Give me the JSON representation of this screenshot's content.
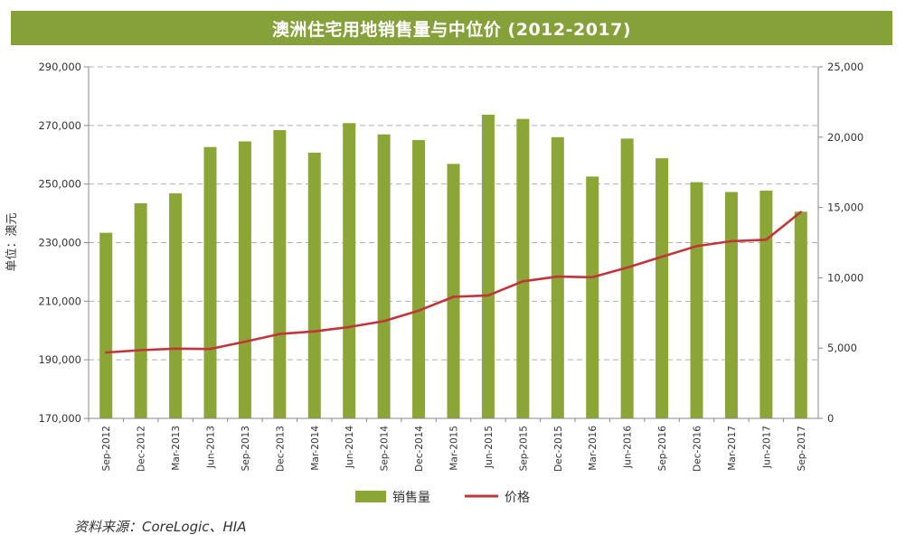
{
  "colors": {
    "bar": "#8ba536",
    "line": "#c0363a",
    "title_bg": "#86a03a",
    "grid": "#b0b0b0"
  },
  "source": "资料来源：CoreLogic、HIA",
  "chart_data": {
    "type": "bar",
    "title": "澳洲住宅用地销售量与中位价 (2012-2017)",
    "ylabel": "单位：澳元",
    "categories": [
      "Sep-2012",
      "Dec-2012",
      "Mar-2013",
      "Jun-2013",
      "Sep-2013",
      "Dec-2013",
      "Mar-2014",
      "Jun-2014",
      "Sep-2014",
      "Dec-2014",
      "Mar-2015",
      "Jun-2015",
      "Sep-2015",
      "Dec-2015",
      "Mar-2016",
      "Jun-2016",
      "Sep-2016",
      "Dec-2016",
      "Mar-2017",
      "Jun-2017",
      "Sep-2017"
    ],
    "series": [
      {
        "name": "销售量",
        "kind": "bar",
        "axis": "right",
        "values": [
          13200,
          15300,
          16000,
          19300,
          19700,
          20500,
          18900,
          21000,
          20200,
          19800,
          18100,
          21600,
          21300,
          20000,
          17200,
          19900,
          18500,
          16800,
          16100,
          16200,
          14700
        ]
      },
      {
        "name": "价格",
        "kind": "line",
        "axis": "left",
        "values": [
          192500,
          193300,
          193800,
          193700,
          196200,
          198800,
          199700,
          201200,
          203200,
          206800,
          211500,
          212000,
          216800,
          218400,
          218200,
          221500,
          225200,
          228800,
          230500,
          231000,
          240500
        ]
      }
    ],
    "y_left": {
      "min": 170000,
      "max": 290000,
      "ticks": [
        "170,000",
        "190,000",
        "210,000",
        "230,000",
        "250,000",
        "270,000",
        "290,000"
      ],
      "tick_values": [
        170000,
        190000,
        210000,
        230000,
        250000,
        270000,
        290000
      ]
    },
    "y_right": {
      "min": 0,
      "max": 25000,
      "ticks": [
        "0",
        "5,000",
        "10,000",
        "15,000",
        "20,000",
        "25,000"
      ],
      "tick_values": [
        0,
        5000,
        10000,
        15000,
        20000,
        25000
      ]
    },
    "grid": true,
    "legend": "bottom-center"
  }
}
